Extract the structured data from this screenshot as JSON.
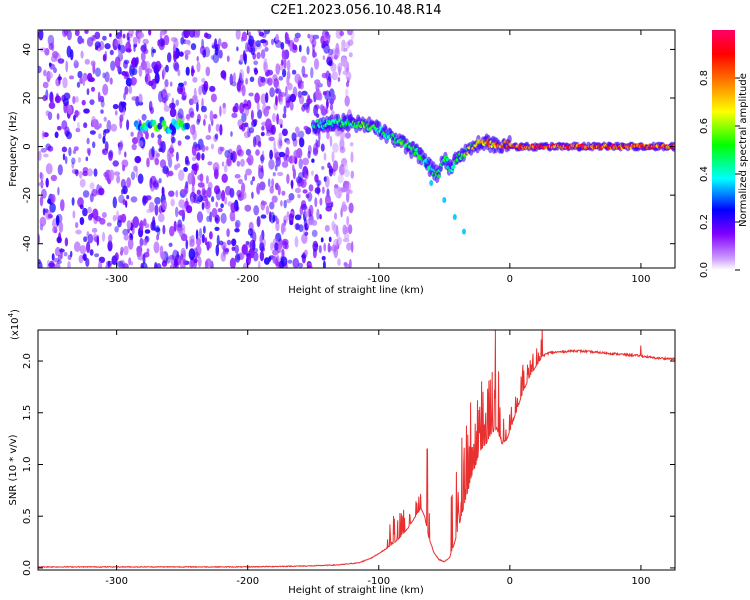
{
  "figure": {
    "title": "C2E1.2023.056.10.48.R14"
  },
  "chart_data": [
    {
      "type": "heatmap",
      "title": "C2E1.2023.056.10.48.R14",
      "xlabel": "Height of straight line (km)",
      "ylabel": "Frequency (Hz)",
      "xlim": [
        -360,
        126
      ],
      "ylim": [
        -50,
        48
      ],
      "xticks": [
        -300,
        -200,
        -100,
        0,
        100
      ],
      "xtick_labels": [
        "-300",
        "-200",
        "-100",
        "0",
        "100"
      ],
      "yticks": [
        -40,
        -20,
        0,
        20,
        40
      ],
      "ytick_labels": [
        "-40",
        "-20",
        "0",
        "20",
        "40"
      ],
      "colorbar": {
        "label": "Normalized spectral amplitude",
        "range": [
          0,
          1
        ],
        "ticks": [
          0.0,
          0.2,
          0.4,
          0.6,
          0.8
        ],
        "tick_labels": [
          "0.0",
          "0.2",
          "0.4",
          "0.6",
          "0.8"
        ],
        "colors": [
          "#ffffff",
          "#cc99ff",
          "#8000ff",
          "#0000ff",
          "#00ffff",
          "#00ff00",
          "#ffff00",
          "#ff8000",
          "#ff0000",
          "#ff0066"
        ]
      },
      "regions": [
        {
          "name": "noise",
          "x": [
            -360,
            -135
          ],
          "y": [
            -50,
            48
          ],
          "amplitude": 0.15
        },
        {
          "name": "early-echo",
          "x": [
            -285,
            -245
          ],
          "y": [
            6,
            11
          ],
          "amplitude": 0.4
        }
      ],
      "ridge": {
        "x": [
          -150,
          -130,
          -110,
          -100,
          -90,
          -80,
          -70,
          -62,
          -55,
          -50,
          -45,
          -40,
          -35,
          -30,
          -25,
          -20,
          -15,
          -10,
          -5,
          0,
          5,
          10,
          20,
          40,
          60,
          80,
          100,
          126
        ],
        "freq": [
          9,
          10,
          9,
          7,
          4,
          1,
          -3,
          -8,
          -12,
          -5,
          -9,
          -5,
          -3,
          -1,
          1,
          2,
          1,
          0,
          1,
          1,
          0,
          0,
          0,
          0,
          0,
          0,
          0,
          0
        ],
        "amplitude": [
          0.45,
          0.5,
          0.55,
          0.5,
          0.5,
          0.55,
          0.5,
          0.45,
          0.5,
          0.5,
          0.45,
          0.55,
          0.6,
          0.65,
          0.7,
          0.75,
          0.8,
          0.8,
          0.85,
          0.85,
          0.9,
          0.9,
          0.9,
          0.9,
          0.9,
          0.9,
          0.9,
          0.9
        ]
      },
      "tail": {
        "x": [
          -60,
          -50,
          -42,
          -35
        ],
        "freq": [
          -15,
          -22,
          -29,
          -35
        ],
        "amplitude": 0.35
      }
    },
    {
      "type": "line",
      "xlabel": "Height of straight line (km)",
      "ylabel": "SNR (10 * v/v)",
      "yscale_label": "(x10",
      "yscale_exponent": "4",
      "xlim": [
        -360,
        126
      ],
      "ylim": [
        -0.02,
        2.3
      ],
      "xticks": [
        -300,
        -200,
        -100,
        0,
        100
      ],
      "xtick_labels": [
        "-300",
        "-200",
        "-100",
        "0",
        "100"
      ],
      "yticks": [
        0.0,
        0.5,
        1.0,
        1.5,
        2.0
      ],
      "ytick_labels": [
        "0.0",
        "0.5",
        "1.0",
        "1.5",
        "2.0"
      ],
      "series": [
        {
          "name": "SNR",
          "color": "#e83030",
          "x": [
            -360,
            -300,
            -200,
            -150,
            -130,
            -115,
            -105,
            -95,
            -85,
            -78,
            -72,
            -68,
            -65,
            -62,
            -58,
            -54,
            -50,
            -46,
            -42,
            -38,
            -34,
            -30,
            -26,
            -22,
            -18,
            -14,
            -10,
            -6,
            -2,
            2,
            6,
            10,
            15,
            20,
            25,
            30,
            40,
            50,
            60,
            70,
            80,
            90,
            100,
            110,
            126
          ],
          "values": [
            0.01,
            0.01,
            0.01,
            0.02,
            0.03,
            0.05,
            0.1,
            0.18,
            0.28,
            0.38,
            0.5,
            0.58,
            0.5,
            0.3,
            0.15,
            0.08,
            0.06,
            0.1,
            0.25,
            0.45,
            0.65,
            0.85,
            1.0,
            1.15,
            1.2,
            1.3,
            1.35,
            1.2,
            1.25,
            1.4,
            1.55,
            1.7,
            1.85,
            1.95,
            2.05,
            2.08,
            2.09,
            2.1,
            2.09,
            2.08,
            2.07,
            2.06,
            2.05,
            2.03,
            2.02
          ]
        }
      ],
      "spike_regions": [
        {
          "x": [
            -95,
            -60
          ],
          "amp": 0.35,
          "density": 0.45
        },
        {
          "x": [
            -45,
            -5
          ],
          "amp": 0.6,
          "density": 0.8
        },
        {
          "x": [
            -5,
            25
          ],
          "amp": 0.25,
          "density": 0.6
        }
      ],
      "peaks": [
        {
          "x": -11,
          "value": 2.3
        },
        {
          "x": -63,
          "value": 1.15
        },
        {
          "x": -30,
          "value": 1.6
        },
        {
          "x": 100,
          "value": 2.15
        }
      ]
    }
  ]
}
